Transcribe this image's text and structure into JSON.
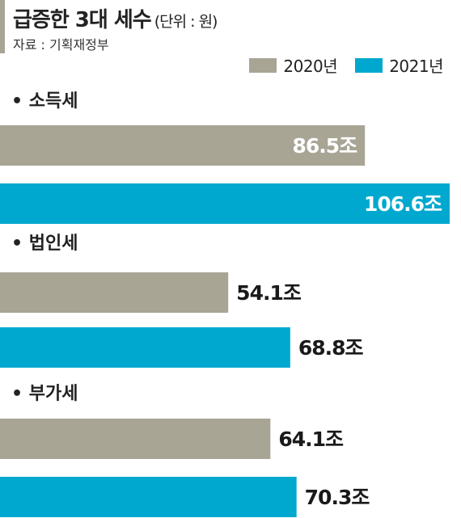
{
  "header": {
    "title": "급증한 3대 세수",
    "unit": "(단위 : 원)",
    "source": "자료 : 기획재정부"
  },
  "colors": {
    "accent_bar": "#a8a595",
    "series_2020": "#a8a595",
    "series_2021": "#00a8cf",
    "label_on_bar": "#ffffff",
    "label_outside": "#1a1a1a"
  },
  "chart_data": {
    "type": "bar",
    "orientation": "horizontal",
    "categories": [
      "소득세",
      "법인세",
      "부가세"
    ],
    "category_prefix": "•",
    "value_suffix": "조",
    "series": [
      {
        "name": "2020년",
        "values": [
          86.5,
          54.1,
          64.1
        ],
        "labels": [
          "86.5조",
          "54.1조",
          "64.1조"
        ]
      },
      {
        "name": "2021년",
        "values": [
          106.6,
          68.8,
          70.3
        ],
        "labels": [
          "106.6조",
          "68.8조",
          "70.3조"
        ]
      }
    ],
    "xlim": [
      0,
      106.6
    ],
    "grid": false,
    "legend": "top-right"
  }
}
